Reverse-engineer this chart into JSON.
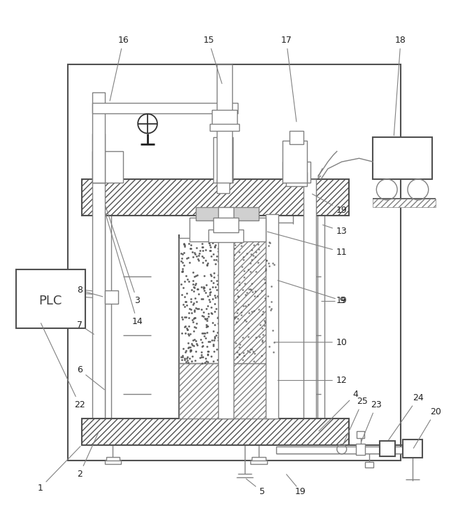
{
  "bg_color": "#ffffff",
  "lc": "#808080",
  "lc2": "#505050",
  "lw": 1.0,
  "lw2": 1.5,
  "figsize": [
    6.75,
    7.43
  ],
  "dpi": 100
}
